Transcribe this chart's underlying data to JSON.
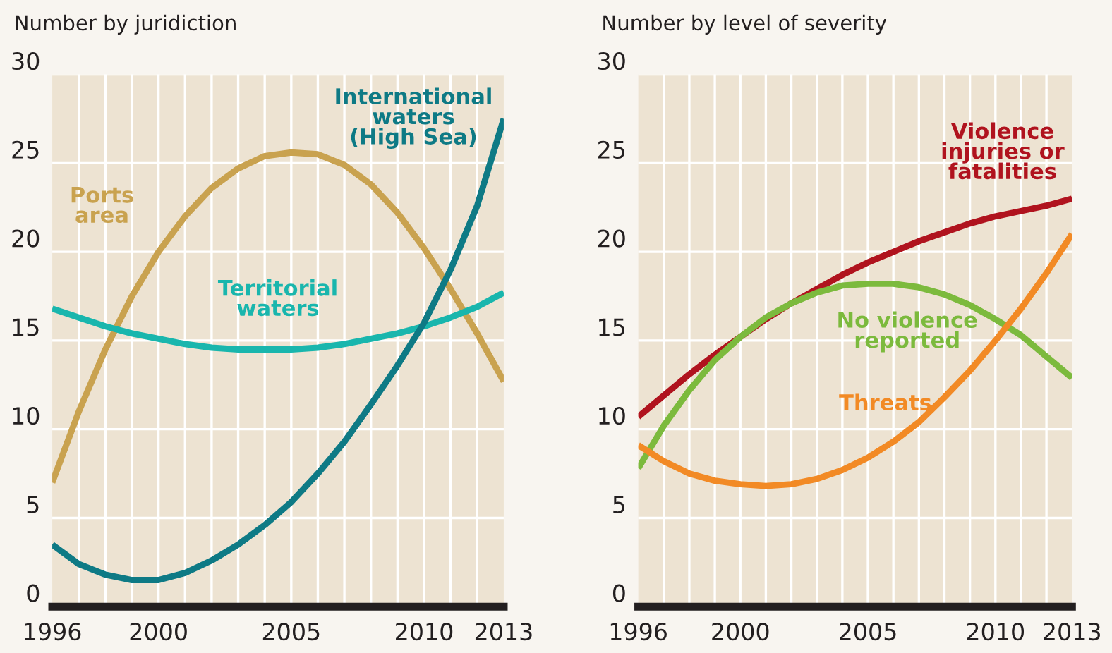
{
  "chart_data": [
    {
      "type": "line",
      "title": "Number by juridiction",
      "x": [
        1996,
        1997,
        1998,
        1999,
        2000,
        2001,
        2002,
        2003,
        2004,
        2005,
        2006,
        2007,
        2008,
        2009,
        2010,
        2011,
        2012,
        2013
      ],
      "xlim": [
        1996,
        2013
      ],
      "xticks": [
        1996,
        2000,
        2005,
        2010,
        2013
      ],
      "ylim": [
        0,
        30
      ],
      "yticks": [
        0,
        5,
        10,
        15,
        20,
        25,
        30
      ],
      "grid": true,
      "legend": false,
      "series": [
        {
          "name": "Ports\narea",
          "color": "#c9a24f",
          "values": [
            7,
            11,
            14.5,
            17.5,
            20,
            22,
            23.6,
            24.7,
            25.4,
            25.6,
            25.5,
            24.9,
            23.8,
            22.2,
            20.2,
            17.9,
            15.4,
            12.7
          ]
        },
        {
          "name": "Territorial\nwaters",
          "color": "#19b6ad",
          "values": [
            16.8,
            16.3,
            15.8,
            15.4,
            15.1,
            14.8,
            14.6,
            14.5,
            14.5,
            14.5,
            14.6,
            14.8,
            15.1,
            15.4,
            15.8,
            16.3,
            16.9,
            17.7
          ]
        },
        {
          "name": "International\nwaters\n(High Sea)",
          "color": "#0e7a85",
          "values": [
            3.5,
            2.4,
            1.8,
            1.5,
            1.5,
            1.9,
            2.6,
            3.5,
            4.6,
            5.9,
            7.5,
            9.3,
            11.4,
            13.6,
            16.0,
            19.0,
            22.6,
            27.5
          ]
        }
      ]
    },
    {
      "type": "line",
      "title": "Number by level of severity",
      "x": [
        1996,
        1997,
        1998,
        1999,
        2000,
        2001,
        2002,
        2003,
        2004,
        2005,
        2006,
        2007,
        2008,
        2009,
        2010,
        2011,
        2012,
        2013
      ],
      "xlim": [
        1996,
        2013
      ],
      "xticks": [
        1996,
        2000,
        2005,
        2010,
        2013
      ],
      "ylim": [
        0,
        30
      ],
      "yticks": [
        0,
        5,
        10,
        15,
        20,
        25,
        30
      ],
      "grid": true,
      "legend": false,
      "series": [
        {
          "name": "Violence\ninjuries or\nfatalities",
          "color": "#b0131e",
          "values": [
            10.7,
            11.9,
            13.1,
            14.2,
            15.2,
            16.2,
            17.1,
            17.9,
            18.7,
            19.4,
            20.0,
            20.6,
            21.1,
            21.6,
            22.0,
            22.3,
            22.6,
            23.0
          ]
        },
        {
          "name": "No violence\nreported",
          "color": "#7cba3d",
          "values": [
            7.8,
            10.2,
            12.2,
            13.9,
            15.2,
            16.3,
            17.1,
            17.7,
            18.1,
            18.2,
            18.2,
            18.0,
            17.6,
            17.0,
            16.2,
            15.3,
            14.1,
            12.9
          ]
        },
        {
          "name": "Threats",
          "color": "#f28a25",
          "values": [
            9.1,
            8.2,
            7.5,
            7.1,
            6.9,
            6.8,
            6.9,
            7.2,
            7.7,
            8.4,
            9.3,
            10.4,
            11.8,
            13.3,
            15.0,
            16.8,
            18.8,
            21.0
          ]
        }
      ]
    }
  ]
}
